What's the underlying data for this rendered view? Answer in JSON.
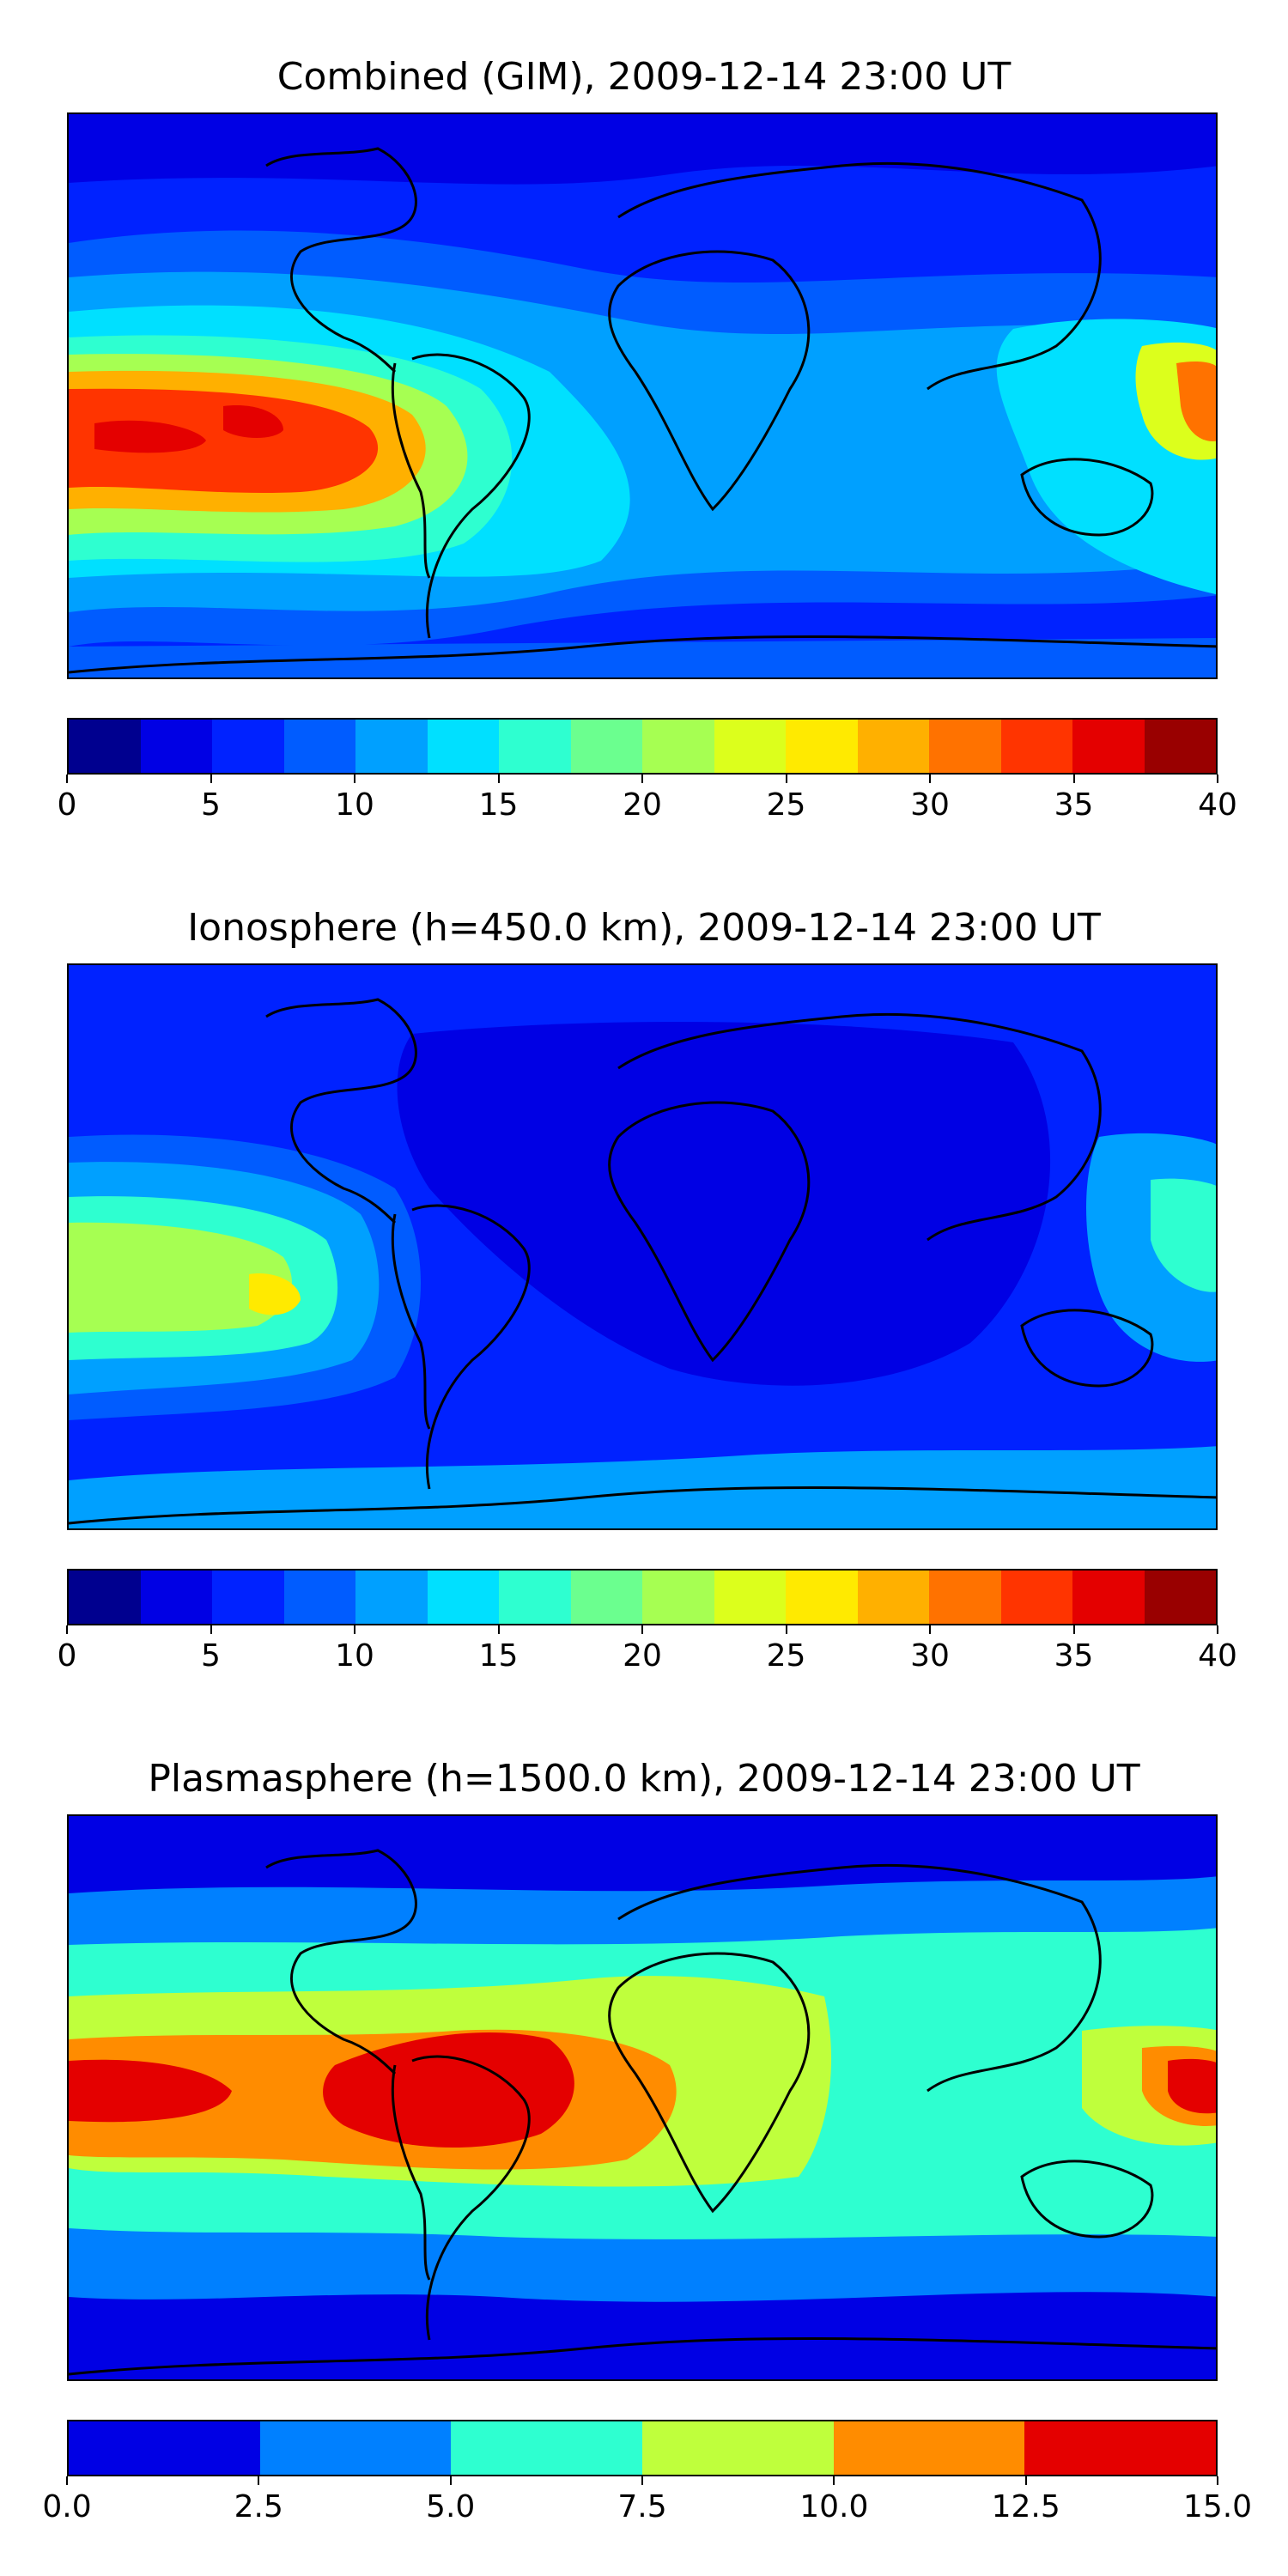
{
  "panels": [
    {
      "title": "Combined (GIM), 2009-12-14 23:00 UT",
      "colorbar": {
        "ticks": [
          "0",
          "5",
          "10",
          "15",
          "20",
          "25",
          "30",
          "35",
          "40"
        ],
        "range": [
          0,
          40
        ],
        "colors": [
          "#00008f",
          "#0000e4",
          "#0022ff",
          "#005cff",
          "#00a0ff",
          "#00e0ff",
          "#2effd0",
          "#6bff8f",
          "#a6ff52",
          "#dcff1c",
          "#ffea00",
          "#ffb000",
          "#ff7200",
          "#ff3400",
          "#e40000",
          "#990000"
        ]
      },
      "map_description_colors": {
        "background": "#0022ff",
        "pacific_high": "#ff3400",
        "pacific_core": "#e40000"
      }
    },
    {
      "title": "Ionosphere  (h=450.0 km), 2009-12-14 23:00 UT",
      "colorbar": {
        "ticks": [
          "0",
          "5",
          "10",
          "15",
          "20",
          "25",
          "30",
          "35",
          "40"
        ],
        "range": [
          0,
          40
        ],
        "colors": [
          "#00008f",
          "#0000e4",
          "#0022ff",
          "#005cff",
          "#00a0ff",
          "#00e0ff",
          "#2effd0",
          "#6bff8f",
          "#a6ff52",
          "#dcff1c",
          "#ffea00",
          "#ffb000",
          "#ff7200",
          "#ff3400",
          "#e40000",
          "#990000"
        ]
      },
      "map_description_colors": {
        "background": "#0022ff",
        "pacific_high": "#a6ff52",
        "pacific_core": "#ffea00"
      }
    },
    {
      "title": "Plasmasphere (h=1500.0 km), 2009-12-14 23:00 UT",
      "colorbar": {
        "ticks": [
          "0.0",
          "2.5",
          "5.0",
          "7.5",
          "10.0",
          "12.5",
          "15.0"
        ],
        "range": [
          0,
          15
        ],
        "colors": [
          "#0000e4",
          "#0080ff",
          "#2effd0",
          "#bfff3c",
          "#ff8c00",
          "#e40000"
        ]
      },
      "map_description_colors": {
        "background": "#0000e4",
        "equatorial_band": "#ff8c00",
        "core": "#e40000"
      }
    }
  ]
}
